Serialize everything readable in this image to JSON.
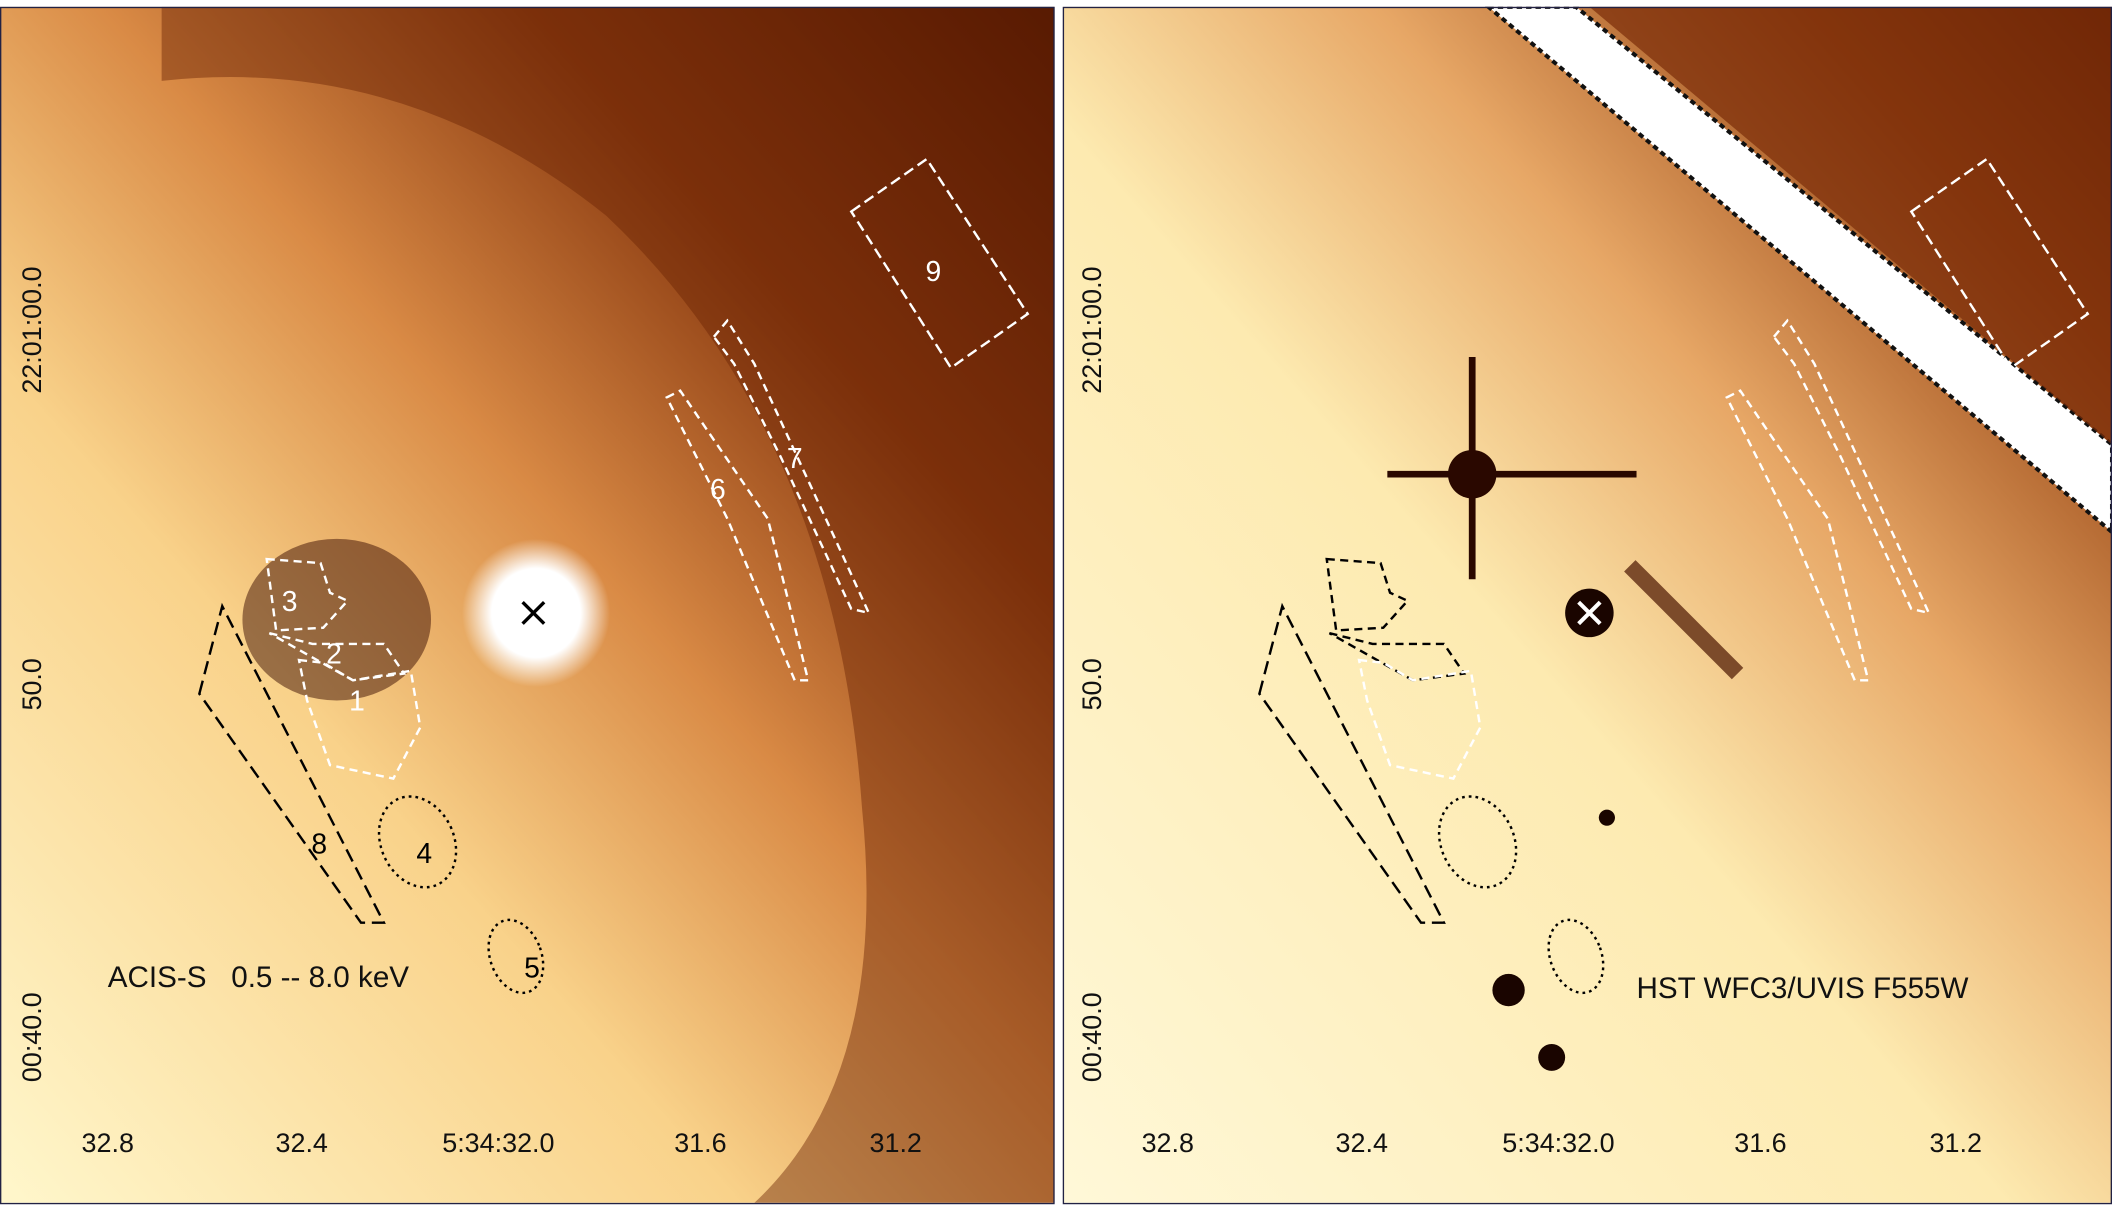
{
  "panels": [
    {
      "caption": "ACIS-S   0.5 -- 8.0 keV",
      "x_ticks": [
        "32.8",
        "32.4",
        "5:34:32.0",
        "31.6",
        "31.2"
      ],
      "y_ticks": [
        "22:01:00.0",
        "50.0",
        "00:40.0"
      ],
      "regions": [
        "1",
        "2",
        "3",
        "4",
        "5",
        "6",
        "7",
        "8",
        "9"
      ]
    },
    {
      "caption": "HST WFC3/UVIS F555W",
      "x_ticks": [
        "32.8",
        "32.4",
        "5:34:32.0",
        "31.6",
        "31.2"
      ],
      "y_ticks": [
        "22:01:00.0",
        "50.0",
        "00:40.0"
      ]
    }
  ]
}
